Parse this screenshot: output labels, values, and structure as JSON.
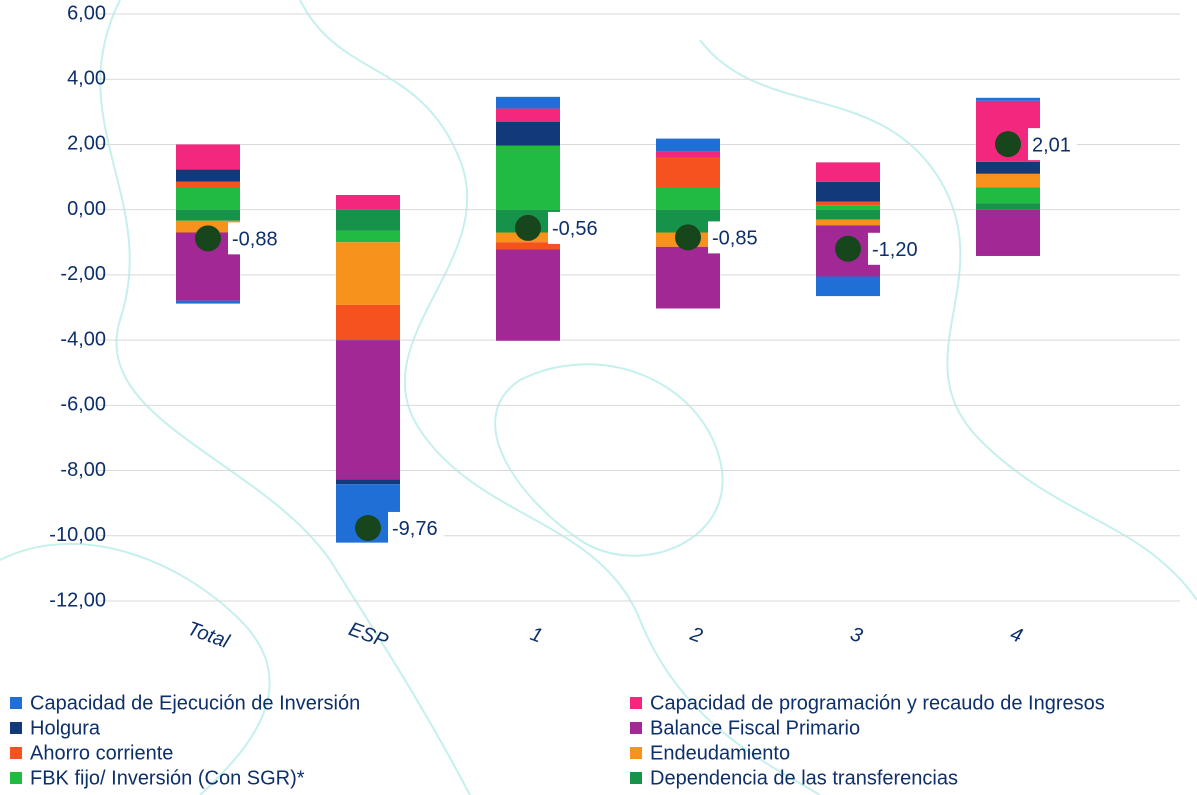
{
  "chart_data": {
    "type": "stacked-bar",
    "categories": [
      "Total",
      "ESP",
      "1",
      "2",
      "3",
      "4"
    ],
    "series": [
      {
        "name": "Capacidad de Ejecución de Inversión",
        "color": "#1f6fd6",
        "values": [
          -0.09,
          -1.79,
          0.36,
          0.4,
          -0.6,
          0.09
        ]
      },
      {
        "name": "Capacidad de programación y recaudo de Ingresos",
        "color": "#f2287f",
        "values": [
          0.77,
          0.45,
          0.4,
          0.18,
          0.6,
          1.87
        ]
      },
      {
        "name": "Holgura",
        "color": "#123a7a",
        "values": [
          0.37,
          -0.15,
          0.74,
          0,
          0.6,
          0.37
        ]
      },
      {
        "name": "Balance Fiscal Primario",
        "color": "#a22896",
        "values": [
          -2.09,
          -4.27,
          -2.8,
          -1.89,
          -1.57,
          -1.42
        ]
      },
      {
        "name": "Ahorro corriente",
        "color": "#f4521e",
        "values": [
          0.18,
          -1.08,
          -0.22,
          0.92,
          0.13,
          0
        ]
      },
      {
        "name": "Endeudamiento",
        "color": "#f7921a",
        "values": [
          -0.36,
          -1.92,
          -0.3,
          -0.44,
          -0.18,
          0.42
        ]
      },
      {
        "name": "FBK fijo/ Inversión  (Con SGR)*",
        "color": "#1fbb43",
        "values": [
          0.68,
          -0.35,
          1.96,
          0.68,
          0.12,
          0.48
        ]
      },
      {
        "name": "Dependencia de las transferencias",
        "color": "#17924a",
        "values": [
          -0.34,
          -0.65,
          -0.7,
          -0.7,
          -0.3,
          0.2
        ]
      }
    ],
    "totals": {
      "color": "#17461c",
      "values": [
        -0.88,
        -9.76,
        -0.56,
        -0.85,
        -1.2,
        2.01
      ],
      "value_labels": [
        "-0,88",
        "-9,76",
        "-0,56",
        "-0,85",
        "-1,20",
        "2,01"
      ]
    },
    "ylim": [
      -12,
      6
    ],
    "yticks": [
      {
        "value": -12,
        "label": "-12,00"
      },
      {
        "value": -10,
        "label": "-10,00"
      },
      {
        "value": -8,
        "label": "-8,00"
      },
      {
        "value": -6,
        "label": "-6,00"
      },
      {
        "value": -4,
        "label": "-4,00"
      },
      {
        "value": -2,
        "label": "-2,00"
      },
      {
        "value": 0,
        "label": "0,00"
      },
      {
        "value": 2,
        "label": "2,00"
      },
      {
        "value": 4,
        "label": "4,00"
      },
      {
        "value": 6,
        "label": "6,00"
      }
    ],
    "grid": true
  }
}
